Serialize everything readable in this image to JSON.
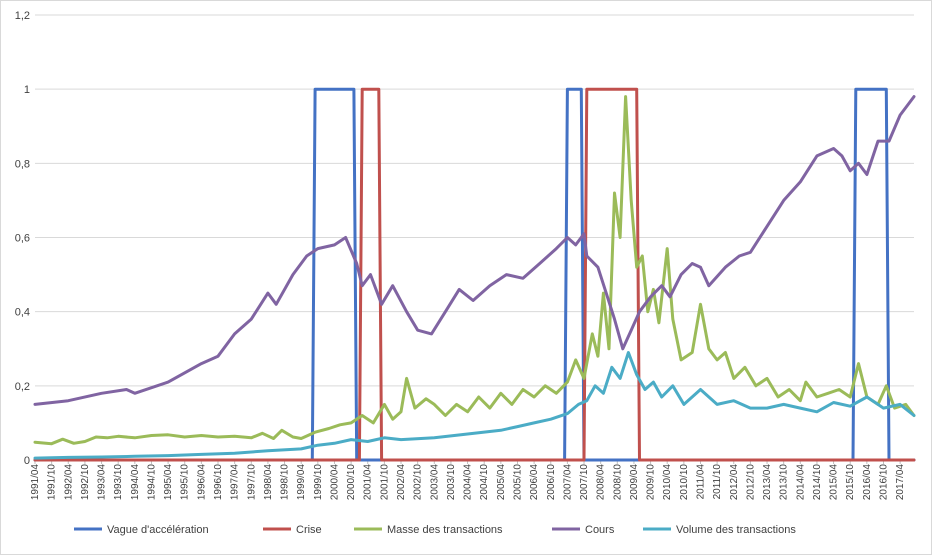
{
  "chart_data": {
    "type": "line",
    "title": "",
    "xlabel": "",
    "ylabel": "",
    "ylim": [
      0,
      1.2
    ],
    "grid": true,
    "legend_position": "bottom",
    "x_start": "1991/04",
    "x_end": "2017/09",
    "y_ticks": [
      "0",
      "0,2",
      "0,4",
      "0,6",
      "0,8",
      "1",
      "1,2"
    ],
    "x_tick_labels": [
      "1991/04",
      "1991/10",
      "1992/04",
      "1992/10",
      "1993/04",
      "1993/10",
      "1994/04",
      "1994/10",
      "1995/04",
      "1995/10",
      "1996/04",
      "1996/10",
      "1997/04",
      "1997/10",
      "1998/04",
      "1998/10",
      "1999/04",
      "1999/10",
      "2000/04",
      "2000/10",
      "2001/04",
      "2001/10",
      "2002/04",
      "2002/10",
      "2003/04",
      "2003/10",
      "2004/04",
      "2004/10",
      "2005/04",
      "2005/10",
      "2006/04",
      "2006/10",
      "2007/04",
      "2007/10",
      "2008/04",
      "2008/10",
      "2009/04",
      "2009/10",
      "2010/04",
      "2010/10",
      "2011/04",
      "2011/10",
      "2012/04",
      "2012/10",
      "2013/04",
      "2013/10",
      "2014/04",
      "2014/10",
      "2015/04",
      "2015/10",
      "2016/04",
      "2016/10",
      "2017/04"
    ],
    "series": [
      {
        "name": "Vague d'accélération",
        "color": "#4472C4",
        "kind": "step",
        "points": [
          [
            "1991/04",
            0
          ],
          [
            "1999/08",
            0
          ],
          [
            "1999/09",
            1
          ],
          [
            "2000/11",
            1
          ],
          [
            "2000/12",
            0
          ],
          [
            "2007/03",
            0
          ],
          [
            "2007/04",
            1
          ],
          [
            "2007/09",
            1
          ],
          [
            "2007/10",
            0
          ],
          [
            "2015/11",
            0
          ],
          [
            "2015/12",
            1
          ],
          [
            "2016/11",
            1
          ],
          [
            "2016/12",
            0
          ],
          [
            "2017/09",
            0
          ]
        ]
      },
      {
        "name": "Crise",
        "color": "#C0504D",
        "kind": "step",
        "points": [
          [
            "1991/04",
            0
          ],
          [
            "2001/01",
            0
          ],
          [
            "2001/02",
            1
          ],
          [
            "2001/08",
            1
          ],
          [
            "2001/09",
            0
          ],
          [
            "2007/10",
            0
          ],
          [
            "2007/11",
            1
          ],
          [
            "2009/05",
            1
          ],
          [
            "2009/06",
            0
          ],
          [
            "2017/09",
            0
          ]
        ]
      },
      {
        "name": "Masse des transactions",
        "color": "#9BBB59",
        "kind": "line",
        "points": [
          [
            "1991/04",
            0.048
          ],
          [
            "1991/10",
            0.044
          ],
          [
            "1992/02",
            0.056
          ],
          [
            "1992/06",
            0.045
          ],
          [
            "1992/10",
            0.05
          ],
          [
            "1993/02",
            0.062
          ],
          [
            "1993/06",
            0.06
          ],
          [
            "1993/10",
            0.064
          ],
          [
            "1994/04",
            0.06
          ],
          [
            "1994/10",
            0.066
          ],
          [
            "1995/04",
            0.068
          ],
          [
            "1995/10",
            0.062
          ],
          [
            "1996/04",
            0.066
          ],
          [
            "1996/10",
            0.062
          ],
          [
            "1997/04",
            0.064
          ],
          [
            "1997/10",
            0.06
          ],
          [
            "1998/02",
            0.072
          ],
          [
            "1998/06",
            0.058
          ],
          [
            "1998/09",
            0.08
          ],
          [
            "1999/01",
            0.062
          ],
          [
            "1999/04",
            0.058
          ],
          [
            "1999/09",
            0.075
          ],
          [
            "2000/02",
            0.085
          ],
          [
            "2000/06",
            0.095
          ],
          [
            "2000/10",
            0.1
          ],
          [
            "2001/02",
            0.12
          ],
          [
            "2001/06",
            0.1
          ],
          [
            "2001/10",
            0.15
          ],
          [
            "2002/01",
            0.11
          ],
          [
            "2002/04",
            0.13
          ],
          [
            "2002/06",
            0.22
          ],
          [
            "2002/09",
            0.14
          ],
          [
            "2003/01",
            0.165
          ],
          [
            "2003/04",
            0.15
          ],
          [
            "2003/08",
            0.12
          ],
          [
            "2003/12",
            0.15
          ],
          [
            "2004/04",
            0.13
          ],
          [
            "2004/08",
            0.17
          ],
          [
            "2004/12",
            0.14
          ],
          [
            "2005/04",
            0.18
          ],
          [
            "2005/08",
            0.15
          ],
          [
            "2005/12",
            0.19
          ],
          [
            "2006/04",
            0.17
          ],
          [
            "2006/08",
            0.2
          ],
          [
            "2006/12",
            0.18
          ],
          [
            "2007/04",
            0.21
          ],
          [
            "2007/07",
            0.27
          ],
          [
            "2007/10",
            0.22
          ],
          [
            "2008/01",
            0.34
          ],
          [
            "2008/03",
            0.28
          ],
          [
            "2008/05",
            0.45
          ],
          [
            "2008/07",
            0.3
          ],
          [
            "2008/09",
            0.72
          ],
          [
            "2008/11",
            0.6
          ],
          [
            "2009/01",
            0.98
          ],
          [
            "2009/03",
            0.7
          ],
          [
            "2009/05",
            0.52
          ],
          [
            "2009/07",
            0.55
          ],
          [
            "2009/09",
            0.4
          ],
          [
            "2009/11",
            0.46
          ],
          [
            "2010/01",
            0.37
          ],
          [
            "2010/04",
            0.57
          ],
          [
            "2010/06",
            0.38
          ],
          [
            "2010/09",
            0.27
          ],
          [
            "2011/01",
            0.29
          ],
          [
            "2011/04",
            0.42
          ],
          [
            "2011/07",
            0.3
          ],
          [
            "2011/10",
            0.27
          ],
          [
            "2012/01",
            0.29
          ],
          [
            "2012/04",
            0.22
          ],
          [
            "2012/08",
            0.25
          ],
          [
            "2012/12",
            0.2
          ],
          [
            "2013/04",
            0.22
          ],
          [
            "2013/08",
            0.17
          ],
          [
            "2013/12",
            0.19
          ],
          [
            "2014/04",
            0.16
          ],
          [
            "2014/06",
            0.21
          ],
          [
            "2014/10",
            0.17
          ],
          [
            "2015/02",
            0.18
          ],
          [
            "2015/06",
            0.19
          ],
          [
            "2015/10",
            0.17
          ],
          [
            "2016/01",
            0.26
          ],
          [
            "2016/04",
            0.17
          ],
          [
            "2016/08",
            0.15
          ],
          [
            "2016/11",
            0.2
          ],
          [
            "2017/02",
            0.14
          ],
          [
            "2017/06",
            0.15
          ],
          [
            "2017/09",
            0.12
          ]
        ]
      },
      {
        "name": "Cours",
        "color": "#8064A2",
        "kind": "line",
        "points": [
          [
            "1991/04",
            0.15
          ],
          [
            "1992/04",
            0.16
          ],
          [
            "1993/04",
            0.18
          ],
          [
            "1994/01",
            0.19
          ],
          [
            "1994/04",
            0.18
          ],
          [
            "1995/04",
            0.21
          ],
          [
            "1996/04",
            0.26
          ],
          [
            "1996/10",
            0.28
          ],
          [
            "1997/04",
            0.34
          ],
          [
            "1997/10",
            0.38
          ],
          [
            "1998/04",
            0.45
          ],
          [
            "1998/07",
            0.42
          ],
          [
            "1999/01",
            0.5
          ],
          [
            "1999/06",
            0.55
          ],
          [
            "1999/10",
            0.57
          ],
          [
            "2000/04",
            0.58
          ],
          [
            "2000/08",
            0.6
          ],
          [
            "2000/12",
            0.53
          ],
          [
            "2001/02",
            0.47
          ],
          [
            "2001/05",
            0.5
          ],
          [
            "2001/09",
            0.42
          ],
          [
            "2002/01",
            0.47
          ],
          [
            "2002/06",
            0.4
          ],
          [
            "2002/10",
            0.35
          ],
          [
            "2003/03",
            0.34
          ],
          [
            "2003/08",
            0.4
          ],
          [
            "2004/01",
            0.46
          ],
          [
            "2004/06",
            0.43
          ],
          [
            "2004/12",
            0.47
          ],
          [
            "2005/06",
            0.5
          ],
          [
            "2005/12",
            0.49
          ],
          [
            "2006/06",
            0.53
          ],
          [
            "2006/12",
            0.57
          ],
          [
            "2007/04",
            0.6
          ],
          [
            "2007/07",
            0.58
          ],
          [
            "2007/10",
            0.61
          ],
          [
            "2007/11",
            0.55
          ],
          [
            "2008/03",
            0.52
          ],
          [
            "2008/06",
            0.45
          ],
          [
            "2008/09",
            0.38
          ],
          [
            "2008/12",
            0.3
          ],
          [
            "2009/03",
            0.35
          ],
          [
            "2009/06",
            0.4
          ],
          [
            "2009/10",
            0.44
          ],
          [
            "2010/02",
            0.47
          ],
          [
            "2010/05",
            0.44
          ],
          [
            "2010/09",
            0.5
          ],
          [
            "2011/01",
            0.53
          ],
          [
            "2011/04",
            0.52
          ],
          [
            "2011/07",
            0.47
          ],
          [
            "2012/01",
            0.52
          ],
          [
            "2012/06",
            0.55
          ],
          [
            "2012/10",
            0.56
          ],
          [
            "2013/04",
            0.63
          ],
          [
            "2013/10",
            0.7
          ],
          [
            "2014/04",
            0.75
          ],
          [
            "2014/10",
            0.82
          ],
          [
            "2015/04",
            0.84
          ],
          [
            "2015/07",
            0.82
          ],
          [
            "2015/10",
            0.78
          ],
          [
            "2016/01",
            0.8
          ],
          [
            "2016/04",
            0.77
          ],
          [
            "2016/08",
            0.86
          ],
          [
            "2016/12",
            0.86
          ],
          [
            "2017/04",
            0.93
          ],
          [
            "2017/09",
            0.98
          ]
        ]
      },
      {
        "name": "Volume des transactions",
        "color": "#4BACC6",
        "kind": "line",
        "points": [
          [
            "1991/04",
            0.005
          ],
          [
            "1992/04",
            0.007
          ],
          [
            "1993/04",
            0.008
          ],
          [
            "1994/04",
            0.01
          ],
          [
            "1995/04",
            0.012
          ],
          [
            "1996/04",
            0.015
          ],
          [
            "1997/04",
            0.018
          ],
          [
            "1998/04",
            0.025
          ],
          [
            "1999/04",
            0.03
          ],
          [
            "1999/10",
            0.04
          ],
          [
            "2000/04",
            0.045
          ],
          [
            "2000/10",
            0.055
          ],
          [
            "2001/04",
            0.05
          ],
          [
            "2001/10",
            0.06
          ],
          [
            "2002/04",
            0.055
          ],
          [
            "2003/04",
            0.06
          ],
          [
            "2004/04",
            0.07
          ],
          [
            "2005/04",
            0.08
          ],
          [
            "2005/10",
            0.09
          ],
          [
            "2006/04",
            0.1
          ],
          [
            "2006/10",
            0.11
          ],
          [
            "2007/04",
            0.125
          ],
          [
            "2007/08",
            0.15
          ],
          [
            "2007/11",
            0.16
          ],
          [
            "2008/02",
            0.2
          ],
          [
            "2008/05",
            0.18
          ],
          [
            "2008/08",
            0.25
          ],
          [
            "2008/11",
            0.22
          ],
          [
            "2009/02",
            0.29
          ],
          [
            "2009/05",
            0.23
          ],
          [
            "2009/08",
            0.19
          ],
          [
            "2009/11",
            0.21
          ],
          [
            "2010/02",
            0.17
          ],
          [
            "2010/06",
            0.2
          ],
          [
            "2010/10",
            0.15
          ],
          [
            "2011/04",
            0.19
          ],
          [
            "2011/10",
            0.15
          ],
          [
            "2012/04",
            0.16
          ],
          [
            "2012/10",
            0.14
          ],
          [
            "2013/04",
            0.14
          ],
          [
            "2013/10",
            0.15
          ],
          [
            "2014/04",
            0.14
          ],
          [
            "2014/10",
            0.13
          ],
          [
            "2015/04",
            0.155
          ],
          [
            "2015/10",
            0.145
          ],
          [
            "2016/04",
            0.17
          ],
          [
            "2016/10",
            0.14
          ],
          [
            "2017/04",
            0.15
          ],
          [
            "2017/09",
            0.12
          ]
        ]
      }
    ]
  }
}
